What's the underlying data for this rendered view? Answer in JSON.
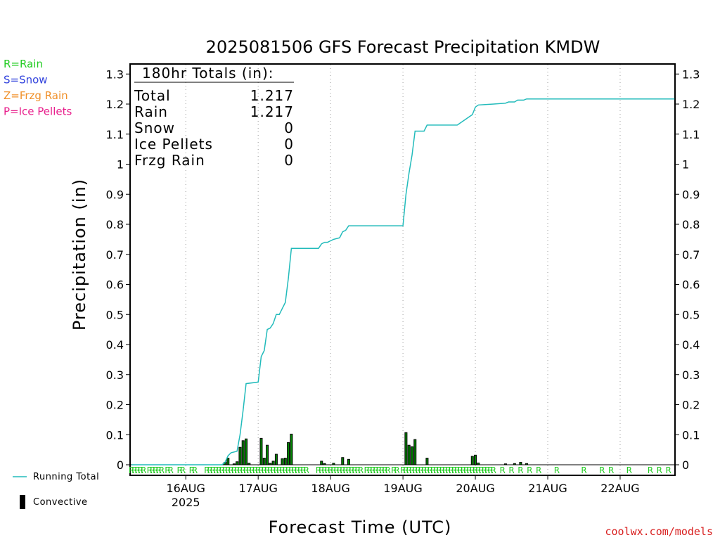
{
  "chart_data": {
    "type": "bar",
    "title": "2025081506 GFS Forecast Precipitation KMDW",
    "xlabel": "Forecast Time (UTC)",
    "ylabel": "Precipitation (in)",
    "x_unit": "hours since 2025-08-15 06 UTC",
    "xlim": [
      0,
      180
    ],
    "ylim": [
      0,
      1.35
    ],
    "yticks": [
      0,
      0.1,
      0.2,
      0.3,
      0.4,
      0.5,
      0.6,
      0.7,
      0.8,
      0.9,
      1,
      1.1,
      1.2,
      1.3
    ],
    "ytick_labels": [
      "0",
      "0.1",
      "0.2",
      "0.3",
      "0.4",
      "0.5",
      "0.6",
      "0.7",
      "0.8",
      "0.9",
      "1",
      "1.1",
      "1.2",
      "1.3"
    ],
    "xticks": [
      {
        "x": 18,
        "label": "16AUG",
        "sublabel": "2025"
      },
      {
        "x": 42,
        "label": "17AUG",
        "sublabel": ""
      },
      {
        "x": 66,
        "label": "18AUG",
        "sublabel": ""
      },
      {
        "x": 90,
        "label": "19AUG",
        "sublabel": ""
      },
      {
        "x": 114,
        "label": "20AUG",
        "sublabel": ""
      },
      {
        "x": 138,
        "label": "21AUG",
        "sublabel": ""
      },
      {
        "x": 162,
        "label": "22AUG",
        "sublabel": ""
      }
    ],
    "grid": "vertical-dotted",
    "precip_type_legend": [
      {
        "label": "R=Rain",
        "color": "#22cc22"
      },
      {
        "label": "S=Snow",
        "color": "#3344dd"
      },
      {
        "label": "Z=Frzg Rain",
        "color": "#f0902a"
      },
      {
        "label": "P=Ice Pellets",
        "color": "#e8208c"
      }
    ],
    "totals_box": {
      "header": "180hr Totals (in):",
      "rows": [
        {
          "label": "Total",
          "value": "1.217"
        },
        {
          "label": "Rain",
          "value": "1.217"
        },
        {
          "label": "Snow",
          "value": "0"
        },
        {
          "label": "Ice Pellets",
          "value": "0"
        },
        {
          "label": "Frzg Rain",
          "value": "0"
        }
      ]
    },
    "series": [
      {
        "name": "Running Total",
        "type": "line",
        "color": "#22bbbb",
        "points": [
          [
            0,
            0
          ],
          [
            30,
            0
          ],
          [
            31,
            0.008
          ],
          [
            32,
            0.03
          ],
          [
            33,
            0.04
          ],
          [
            35,
            0.045
          ],
          [
            36,
            0.1
          ],
          [
            37,
            0.18
          ],
          [
            38,
            0.27
          ],
          [
            42,
            0.275
          ],
          [
            43,
            0.36
          ],
          [
            44,
            0.38
          ],
          [
            45,
            0.45
          ],
          [
            46,
            0.455
          ],
          [
            47,
            0.47
          ],
          [
            48,
            0.5
          ],
          [
            49,
            0.5
          ],
          [
            50,
            0.52
          ],
          [
            51,
            0.54
          ],
          [
            52,
            0.62
          ],
          [
            53,
            0.72
          ],
          [
            62,
            0.72
          ],
          [
            63,
            0.735
          ],
          [
            64,
            0.74
          ],
          [
            65,
            0.74
          ],
          [
            66,
            0.745
          ],
          [
            67,
            0.75
          ],
          [
            69,
            0.755
          ],
          [
            70,
            0.775
          ],
          [
            71,
            0.78
          ],
          [
            72,
            0.795
          ],
          [
            90,
            0.795
          ],
          [
            91,
            0.9
          ],
          [
            92,
            0.97
          ],
          [
            93,
            1.03
          ],
          [
            94,
            1.11
          ],
          [
            97,
            1.11
          ],
          [
            98,
            1.13
          ],
          [
            108,
            1.13
          ],
          [
            113,
            1.165
          ],
          [
            114,
            1.19
          ],
          [
            115,
            1.197
          ],
          [
            120,
            1.2
          ],
          [
            124,
            1.203
          ],
          [
            125,
            1.207
          ],
          [
            127,
            1.207
          ],
          [
            128,
            1.213
          ],
          [
            130,
            1.213
          ],
          [
            131,
            1.217
          ],
          [
            180,
            1.217
          ]
        ]
      },
      {
        "name": "Convective",
        "type": "bar",
        "color": "#008800",
        "bars": [
          [
            31,
            0.008
          ],
          [
            32,
            0.022
          ],
          [
            34,
            0.003
          ],
          [
            35,
            0.01
          ],
          [
            36,
            0.058
          ],
          [
            37,
            0.08
          ],
          [
            38,
            0.086
          ],
          [
            39,
            0.005
          ],
          [
            43,
            0.088
          ],
          [
            44,
            0.022
          ],
          [
            45,
            0.065
          ],
          [
            46,
            0.005
          ],
          [
            47,
            0.012
          ],
          [
            48,
            0.035
          ],
          [
            50,
            0.02
          ],
          [
            51,
            0.022
          ],
          [
            52,
            0.074
          ],
          [
            53,
            0.102
          ],
          [
            63,
            0.012
          ],
          [
            64,
            0.004
          ],
          [
            67,
            0.005
          ],
          [
            70,
            0.024
          ],
          [
            72,
            0.018
          ],
          [
            91,
            0.107
          ],
          [
            92,
            0.065
          ],
          [
            93,
            0.06
          ],
          [
            94,
            0.084
          ],
          [
            98,
            0.022
          ],
          [
            113,
            0.028
          ],
          [
            114,
            0.032
          ],
          [
            115,
            0.006
          ],
          [
            124,
            0.003
          ],
          [
            127,
            0.004
          ],
          [
            129,
            0.008
          ],
          [
            131,
            0.004
          ]
        ]
      }
    ],
    "precip_type_markers": {
      "symbol": "R",
      "color": "#22cc22",
      "x": [
        0,
        1,
        2,
        3,
        4,
        6,
        7,
        8,
        9,
        10,
        12,
        13,
        16,
        17,
        20,
        21,
        25,
        26,
        27,
        28,
        29,
        30,
        31,
        32,
        33,
        34,
        35,
        36,
        37,
        38,
        39,
        40,
        41,
        42,
        43,
        44,
        45,
        46,
        47,
        48,
        49,
        50,
        51,
        52,
        53,
        54,
        55,
        56,
        57,
        58,
        62,
        63,
        64,
        65,
        66,
        67,
        68,
        69,
        70,
        71,
        72,
        73,
        74,
        75,
        76,
        78,
        79,
        80,
        81,
        82,
        83,
        84,
        85,
        87,
        88,
        90,
        91,
        92,
        93,
        94,
        95,
        96,
        97,
        98,
        99,
        100,
        101,
        102,
        103,
        104,
        105,
        106,
        107,
        108,
        109,
        110,
        111,
        112,
        113,
        114,
        115,
        116,
        117,
        118,
        119,
        120,
        123,
        126,
        129,
        132,
        135,
        141,
        150,
        156,
        159,
        165,
        172,
        175,
        178
      ]
    },
    "bottom_legend": [
      {
        "label": "Running Total",
        "kind": "line"
      },
      {
        "label": "Convective",
        "kind": "bar"
      }
    ]
  },
  "credit": {
    "text": "coolwx.com/models",
    "color": "#d81e1e"
  }
}
